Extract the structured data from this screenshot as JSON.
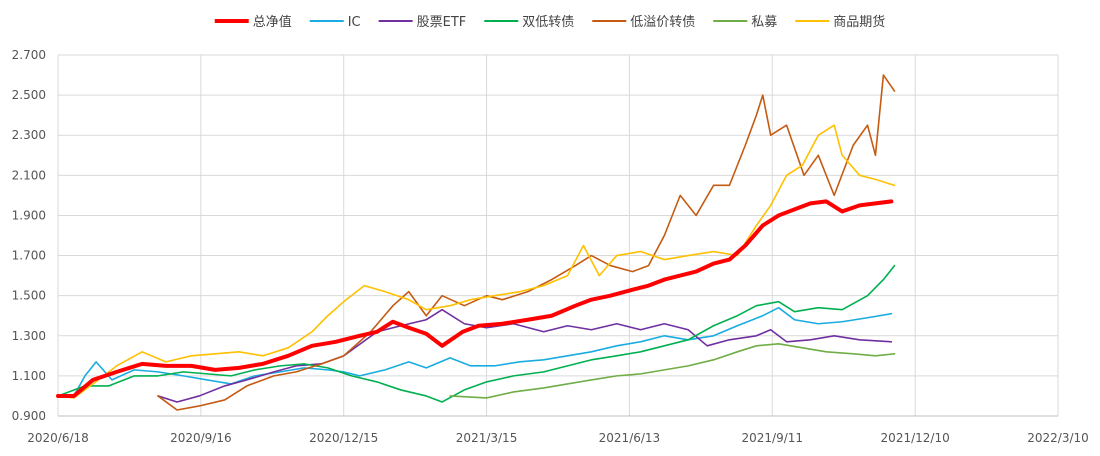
{
  "chart_data": {
    "type": "line",
    "title": "",
    "xlabel": "",
    "ylabel": "",
    "x_axis": {
      "type": "date",
      "range": [
        "2020-06-18",
        "2022-03-10"
      ],
      "ticks": [
        "2020/6/18",
        "2020/9/16",
        "2020/12/15",
        "2021/3/15",
        "2021/6/13",
        "2021/9/11",
        "2021/12/10",
        "2022/3/10"
      ],
      "grid": true
    },
    "y_axis": {
      "range": [
        0.9,
        2.7
      ],
      "ticks": [
        "0.900",
        "1.100",
        "1.300",
        "1.500",
        "1.700",
        "1.900",
        "2.100",
        "2.300",
        "2.500",
        "2.700"
      ],
      "grid": true
    },
    "legend": {
      "position": "top"
    },
    "series": [
      {
        "name": "总净值",
        "color": "#ff0000",
        "width": 4,
        "points": [
          [
            "2020-06-18",
            1.0
          ],
          [
            "2020-06-28",
            1.0
          ],
          [
            "2020-07-10",
            1.08
          ],
          [
            "2020-07-25",
            1.12
          ],
          [
            "2020-08-10",
            1.16
          ],
          [
            "2020-08-25",
            1.15
          ],
          [
            "2020-09-10",
            1.15
          ],
          [
            "2020-09-25",
            1.13
          ],
          [
            "2020-10-10",
            1.14
          ],
          [
            "2020-10-25",
            1.16
          ],
          [
            "2020-11-10",
            1.2
          ],
          [
            "2020-11-25",
            1.25
          ],
          [
            "2020-12-10",
            1.27
          ],
          [
            "2020-12-25",
            1.3
          ],
          [
            "2021-01-05",
            1.32
          ],
          [
            "2021-01-15",
            1.37
          ],
          [
            "2021-01-25",
            1.34
          ],
          [
            "2021-02-05",
            1.31
          ],
          [
            "2021-02-15",
            1.25
          ],
          [
            "2021-02-28",
            1.32
          ],
          [
            "2021-03-10",
            1.35
          ],
          [
            "2021-03-25",
            1.36
          ],
          [
            "2021-04-10",
            1.38
          ],
          [
            "2021-04-25",
            1.4
          ],
          [
            "2021-05-10",
            1.45
          ],
          [
            "2021-05-20",
            1.48
          ],
          [
            "2021-06-01",
            1.5
          ],
          [
            "2021-06-15",
            1.53
          ],
          [
            "2021-06-25",
            1.55
          ],
          [
            "2021-07-05",
            1.58
          ],
          [
            "2021-07-15",
            1.6
          ],
          [
            "2021-07-25",
            1.62
          ],
          [
            "2021-08-05",
            1.66
          ],
          [
            "2021-08-15",
            1.68
          ],
          [
            "2021-08-25",
            1.75
          ],
          [
            "2021-09-05",
            1.85
          ],
          [
            "2021-09-15",
            1.9
          ],
          [
            "2021-09-25",
            1.93
          ],
          [
            "2021-10-05",
            1.96
          ],
          [
            "2021-10-15",
            1.97
          ],
          [
            "2021-10-25",
            1.92
          ],
          [
            "2021-11-05",
            1.95
          ],
          [
            "2021-11-15",
            1.96
          ],
          [
            "2021-11-25",
            1.97
          ]
        ]
      },
      {
        "name": "IC",
        "color": "#1aace0",
        "width": 1.6,
        "points": [
          [
            "2020-06-18",
            1.0
          ],
          [
            "2020-06-28",
            1.0
          ],
          [
            "2020-07-05",
            1.1
          ],
          [
            "2020-07-12",
            1.17
          ],
          [
            "2020-07-22",
            1.08
          ],
          [
            "2020-08-05",
            1.13
          ],
          [
            "2020-08-20",
            1.12
          ],
          [
            "2020-09-05",
            1.1
          ],
          [
            "2020-09-20",
            1.08
          ],
          [
            "2020-10-05",
            1.06
          ],
          [
            "2020-10-20",
            1.1
          ],
          [
            "2020-11-05",
            1.12
          ],
          [
            "2020-11-20",
            1.14
          ],
          [
            "2020-12-05",
            1.13
          ],
          [
            "2020-12-15",
            1.12
          ],
          [
            "2020-12-25",
            1.1
          ],
          [
            "2021-01-10",
            1.13
          ],
          [
            "2021-01-25",
            1.17
          ],
          [
            "2021-02-05",
            1.14
          ],
          [
            "2021-02-20",
            1.19
          ],
          [
            "2021-03-05",
            1.15
          ],
          [
            "2021-03-20",
            1.15
          ],
          [
            "2021-04-05",
            1.17
          ],
          [
            "2021-04-20",
            1.18
          ],
          [
            "2021-05-05",
            1.2
          ],
          [
            "2021-05-20",
            1.22
          ],
          [
            "2021-06-05",
            1.25
          ],
          [
            "2021-06-20",
            1.27
          ],
          [
            "2021-07-05",
            1.3
          ],
          [
            "2021-07-20",
            1.28
          ],
          [
            "2021-08-05",
            1.3
          ],
          [
            "2021-08-20",
            1.35
          ],
          [
            "2021-09-05",
            1.4
          ],
          [
            "2021-09-15",
            1.44
          ],
          [
            "2021-09-25",
            1.38
          ],
          [
            "2021-10-10",
            1.36
          ],
          [
            "2021-10-25",
            1.37
          ],
          [
            "2021-11-10",
            1.39
          ],
          [
            "2021-11-25",
            1.41
          ]
        ]
      },
      {
        "name": "股票ETF",
        "color": "#7030a0",
        "width": 1.6,
        "points": [
          [
            "2020-08-20",
            1.0
          ],
          [
            "2020-09-01",
            0.97
          ],
          [
            "2020-09-15",
            1.0
          ],
          [
            "2020-10-01",
            1.05
          ],
          [
            "2020-10-15",
            1.08
          ],
          [
            "2020-11-01",
            1.12
          ],
          [
            "2020-11-15",
            1.15
          ],
          [
            "2020-12-01",
            1.16
          ],
          [
            "2020-12-15",
            1.2
          ],
          [
            "2021-01-05",
            1.32
          ],
          [
            "2021-01-20",
            1.35
          ],
          [
            "2021-02-05",
            1.38
          ],
          [
            "2021-02-15",
            1.43
          ],
          [
            "2021-03-01",
            1.36
          ],
          [
            "2021-03-15",
            1.34
          ],
          [
            "2021-04-01",
            1.36
          ],
          [
            "2021-04-20",
            1.32
          ],
          [
            "2021-05-05",
            1.35
          ],
          [
            "2021-05-20",
            1.33
          ],
          [
            "2021-06-05",
            1.36
          ],
          [
            "2021-06-20",
            1.33
          ],
          [
            "2021-07-05",
            1.36
          ],
          [
            "2021-07-20",
            1.33
          ],
          [
            "2021-08-01",
            1.25
          ],
          [
            "2021-08-15",
            1.28
          ],
          [
            "2021-09-01",
            1.3
          ],
          [
            "2021-09-10",
            1.33
          ],
          [
            "2021-09-20",
            1.27
          ],
          [
            "2021-10-05",
            1.28
          ],
          [
            "2021-10-20",
            1.3
          ],
          [
            "2021-11-05",
            1.28
          ],
          [
            "2021-11-25",
            1.27
          ]
        ]
      },
      {
        "name": "双低转债",
        "color": "#00b050",
        "width": 1.6,
        "points": [
          [
            "2020-06-18",
            1.0
          ],
          [
            "2020-07-05",
            1.05
          ],
          [
            "2020-07-20",
            1.05
          ],
          [
            "2020-08-05",
            1.1
          ],
          [
            "2020-08-20",
            1.1
          ],
          [
            "2020-09-05",
            1.12
          ],
          [
            "2020-09-20",
            1.11
          ],
          [
            "2020-10-05",
            1.1
          ],
          [
            "2020-10-20",
            1.13
          ],
          [
            "2020-11-05",
            1.15
          ],
          [
            "2020-11-20",
            1.16
          ],
          [
            "2020-12-05",
            1.14
          ],
          [
            "2020-12-20",
            1.1
          ],
          [
            "2021-01-05",
            1.07
          ],
          [
            "2021-01-20",
            1.03
          ],
          [
            "2021-02-05",
            1.0
          ],
          [
            "2021-02-15",
            0.97
          ],
          [
            "2021-03-01",
            1.03
          ],
          [
            "2021-03-15",
            1.07
          ],
          [
            "2021-04-01",
            1.1
          ],
          [
            "2021-04-20",
            1.12
          ],
          [
            "2021-05-05",
            1.15
          ],
          [
            "2021-05-20",
            1.18
          ],
          [
            "2021-06-05",
            1.2
          ],
          [
            "2021-06-20",
            1.22
          ],
          [
            "2021-07-05",
            1.25
          ],
          [
            "2021-07-20",
            1.28
          ],
          [
            "2021-08-05",
            1.35
          ],
          [
            "2021-08-20",
            1.4
          ],
          [
            "2021-09-01",
            1.45
          ],
          [
            "2021-09-15",
            1.47
          ],
          [
            "2021-09-25",
            1.42
          ],
          [
            "2021-10-10",
            1.44
          ],
          [
            "2021-10-25",
            1.43
          ],
          [
            "2021-11-10",
            1.5
          ],
          [
            "2021-11-20",
            1.58
          ],
          [
            "2021-11-27",
            1.65
          ]
        ]
      },
      {
        "name": "低溢价转债",
        "color": "#c55a11",
        "width": 1.6,
        "points": [
          [
            "2020-08-20",
            1.0
          ],
          [
            "2020-09-01",
            0.93
          ],
          [
            "2020-09-15",
            0.95
          ],
          [
            "2020-10-01",
            0.98
          ],
          [
            "2020-10-15",
            1.05
          ],
          [
            "2020-11-01",
            1.1
          ],
          [
            "2020-11-15",
            1.12
          ],
          [
            "2020-12-01",
            1.16
          ],
          [
            "2020-12-15",
            1.2
          ],
          [
            "2021-01-01",
            1.32
          ],
          [
            "2021-01-15",
            1.45
          ],
          [
            "2021-01-25",
            1.52
          ],
          [
            "2021-02-05",
            1.4
          ],
          [
            "2021-02-15",
            1.5
          ],
          [
            "2021-03-01",
            1.45
          ],
          [
            "2021-03-15",
            1.5
          ],
          [
            "2021-03-25",
            1.48
          ],
          [
            "2021-04-10",
            1.52
          ],
          [
            "2021-04-25",
            1.58
          ],
          [
            "2021-05-10",
            1.65
          ],
          [
            "2021-05-20",
            1.7
          ],
          [
            "2021-06-01",
            1.65
          ],
          [
            "2021-06-15",
            1.62
          ],
          [
            "2021-06-25",
            1.65
          ],
          [
            "2021-07-05",
            1.8
          ],
          [
            "2021-07-15",
            2.0
          ],
          [
            "2021-07-25",
            1.9
          ],
          [
            "2021-08-05",
            2.05
          ],
          [
            "2021-08-15",
            2.05
          ],
          [
            "2021-08-25",
            2.25
          ],
          [
            "2021-09-01",
            2.4
          ],
          [
            "2021-09-05",
            2.5
          ],
          [
            "2021-09-10",
            2.3
          ],
          [
            "2021-09-20",
            2.35
          ],
          [
            "2021-10-01",
            2.1
          ],
          [
            "2021-10-10",
            2.2
          ],
          [
            "2021-10-20",
            2.0
          ],
          [
            "2021-11-01",
            2.25
          ],
          [
            "2021-11-10",
            2.35
          ],
          [
            "2021-11-15",
            2.2
          ],
          [
            "2021-11-20",
            2.6
          ],
          [
            "2021-11-27",
            2.52
          ]
        ]
      },
      {
        "name": "私募",
        "color": "#70ad47",
        "width": 1.6,
        "points": [
          [
            "2021-02-20",
            1.0
          ],
          [
            "2021-03-15",
            0.99
          ],
          [
            "2021-04-01",
            1.02
          ],
          [
            "2021-04-20",
            1.04
          ],
          [
            "2021-05-05",
            1.06
          ],
          [
            "2021-05-20",
            1.08
          ],
          [
            "2021-06-05",
            1.1
          ],
          [
            "2021-06-20",
            1.11
          ],
          [
            "2021-07-05",
            1.13
          ],
          [
            "2021-07-20",
            1.15
          ],
          [
            "2021-08-05",
            1.18
          ],
          [
            "2021-08-20",
            1.22
          ],
          [
            "2021-09-01",
            1.25
          ],
          [
            "2021-09-15",
            1.26
          ],
          [
            "2021-09-30",
            1.24
          ],
          [
            "2021-10-15",
            1.22
          ],
          [
            "2021-11-01",
            1.21
          ],
          [
            "2021-11-15",
            1.2
          ],
          [
            "2021-11-27",
            1.21
          ]
        ]
      },
      {
        "name": "商品期货",
        "color": "#ffc000",
        "width": 1.6,
        "points": [
          [
            "2020-06-18",
            1.0
          ],
          [
            "2020-06-28",
            0.99
          ],
          [
            "2020-07-10",
            1.06
          ],
          [
            "2020-07-25",
            1.15
          ],
          [
            "2020-08-10",
            1.22
          ],
          [
            "2020-08-25",
            1.17
          ],
          [
            "2020-09-10",
            1.2
          ],
          [
            "2020-09-25",
            1.21
          ],
          [
            "2020-10-10",
            1.22
          ],
          [
            "2020-10-25",
            1.2
          ],
          [
            "2020-11-10",
            1.24
          ],
          [
            "2020-11-25",
            1.32
          ],
          [
            "2020-12-05",
            1.4
          ],
          [
            "2020-12-15",
            1.47
          ],
          [
            "2020-12-28",
            1.55
          ],
          [
            "2021-01-10",
            1.52
          ],
          [
            "2021-01-25",
            1.48
          ],
          [
            "2021-02-05",
            1.43
          ],
          [
            "2021-02-20",
            1.45
          ],
          [
            "2021-03-05",
            1.48
          ],
          [
            "2021-03-20",
            1.5
          ],
          [
            "2021-04-05",
            1.52
          ],
          [
            "2021-04-20",
            1.55
          ],
          [
            "2021-05-05",
            1.6
          ],
          [
            "2021-05-15",
            1.75
          ],
          [
            "2021-05-25",
            1.6
          ],
          [
            "2021-06-05",
            1.7
          ],
          [
            "2021-06-20",
            1.72
          ],
          [
            "2021-07-05",
            1.68
          ],
          [
            "2021-07-20",
            1.7
          ],
          [
            "2021-08-05",
            1.72
          ],
          [
            "2021-08-20",
            1.7
          ],
          [
            "2021-09-01",
            1.85
          ],
          [
            "2021-09-10",
            1.95
          ],
          [
            "2021-09-20",
            2.1
          ],
          [
            "2021-09-30",
            2.15
          ],
          [
            "2021-10-10",
            2.3
          ],
          [
            "2021-10-20",
            2.35
          ],
          [
            "2021-10-25",
            2.2
          ],
          [
            "2021-11-05",
            2.1
          ],
          [
            "2021-11-15",
            2.08
          ],
          [
            "2021-11-27",
            2.05
          ]
        ]
      }
    ]
  }
}
